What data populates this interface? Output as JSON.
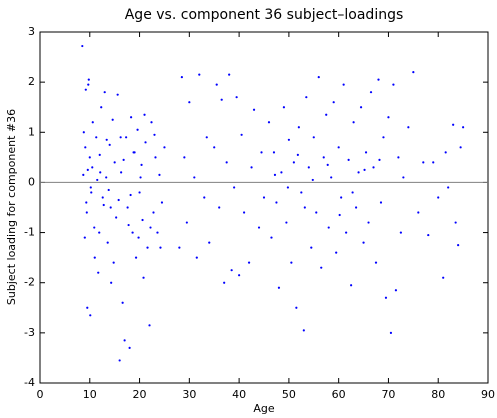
{
  "chart_data": {
    "type": "scatter",
    "title": "Age vs. component 36 subject–loadings",
    "x_label": "Age",
    "y_label": "Subject loading for component #36",
    "color": "#0000ff",
    "reference_line": 0,
    "reference_color": "#808080",
    "xlim": [
      0,
      90
    ],
    "xticks": [
      0,
      10,
      20,
      30,
      40,
      50,
      60,
      70,
      80,
      90
    ],
    "ylim": [
      -4,
      3
    ],
    "yticks": [
      -4,
      -3,
      -2,
      -1,
      0,
      1,
      2,
      3
    ],
    "x": [
      8.5,
      8.7,
      9,
      9.2,
      9.5,
      9.8,
      10,
      10.3,
      10.6,
      11,
      8.8,
      9.1,
      9.4,
      9.7,
      10.1,
      10.5,
      10.9,
      11.3,
      11.7,
      12,
      12.3,
      12.6,
      13,
      13.3,
      13.6,
      14,
      14.3,
      14.6,
      15,
      15.3,
      15.6,
      16,
      16.3,
      16.6,
      17,
      17.3,
      17.6,
      18,
      18.3,
      18.6,
      19,
      19.3,
      19.6,
      20,
      20.4,
      20.8,
      21.2,
      21.6,
      22,
      22.4,
      22.8,
      23.2,
      23.6,
      24,
      24.5,
      25,
      10.2,
      11.5,
      12.8,
      14.8,
      16.8,
      17.8,
      19.8,
      21,
      23,
      9.6,
      13.8,
      15.8,
      18.8,
      20.6,
      28,
      28.5,
      29,
      29.5,
      30,
      31,
      31.5,
      32,
      33,
      33.5,
      34,
      35,
      35.5,
      36,
      36.5,
      37,
      37.5,
      38,
      38.5,
      39,
      39.5,
      40,
      40.5,
      41,
      42,
      42.5,
      43,
      44,
      44.5,
      45,
      46,
      46.5,
      47,
      47.5,
      48,
      48.5,
      49,
      49.5,
      50,
      50.5,
      51,
      51.5,
      52,
      52.5,
      53,
      53.5,
      54,
      54.5,
      55,
      55.5,
      56,
      56.5,
      57,
      57.5,
      58,
      58.5,
      59,
      59.5,
      60,
      60.5,
      61,
      61.5,
      62,
      62.5,
      63,
      63.5,
      64,
      64.5,
      65,
      65.5,
      66,
      66.5,
      67,
      67.5,
      68,
      68.5,
      69,
      69.5,
      70,
      70.5,
      71,
      71.5,
      72,
      72.5,
      73,
      74,
      75,
      76,
      77,
      78,
      79,
      80,
      81,
      81.5,
      82,
      83,
      83.5,
      84,
      84.5,
      85,
      47.2,
      49.8,
      51.8,
      53.2,
      54.8,
      57.8,
      60.2,
      62.8,
      65.2,
      68.2,
      12.1,
      14.2,
      16.2,
      18.2,
      20.2,
      22.2,
      24.2,
      9.3,
      11.9,
      13.4
    ],
    "values": [
      2.72,
      0.15,
      -1.1,
      1.85,
      -2.5,
      2.05,
      0.5,
      -0.2,
      1.2,
      -1.5,
      1.0,
      0.7,
      -0.6,
      1.95,
      -2.65,
      0.3,
      -0.9,
      0.9,
      -1.8,
      0.55,
      1.5,
      -0.3,
      1.8,
      0.1,
      -1.2,
      0.75,
      -2.0,
      1.25,
      0.4,
      -0.7,
      1.75,
      -3.55,
      0.2,
      -2.4,
      -3.15,
      0.9,
      -0.5,
      -3.3,
      1.3,
      -1.0,
      0.6,
      -1.5,
      1.05,
      -0.2,
      0.35,
      -1.9,
      0.8,
      -1.3,
      -2.85,
      1.2,
      -0.6,
      0.5,
      -1.0,
      0.15,
      -0.4,
      0.7,
      -0.1,
      0.05,
      -0.45,
      -1.6,
      0.45,
      -0.85,
      -1.1,
      1.35,
      0.95,
      0.25,
      -0.15,
      -0.35,
      0.6,
      -0.75,
      -1.3,
      2.1,
      0.5,
      -0.8,
      1.6,
      0.1,
      -1.5,
      2.15,
      -0.3,
      0.9,
      -1.2,
      0.7,
      1.95,
      -0.5,
      1.65,
      -2.0,
      0.4,
      2.15,
      -1.75,
      -0.1,
      1.7,
      -1.85,
      0.95,
      -0.6,
      -1.6,
      0.3,
      1.45,
      -0.9,
      0.6,
      -0.3,
      1.2,
      -1.1,
      0.6,
      -0.4,
      -2.1,
      0.2,
      1.5,
      -0.8,
      0.85,
      -1.6,
      0.4,
      -2.5,
      1.1,
      -0.2,
      -2.95,
      1.7,
      0.3,
      -1.3,
      0.9,
      -0.6,
      2.1,
      -1.7,
      0.5,
      1.35,
      -0.9,
      0.1,
      1.6,
      -1.4,
      0.7,
      -0.3,
      1.95,
      -1.0,
      0.45,
      -2.05,
      1.2,
      -0.5,
      0.2,
      1.5,
      -1.2,
      0.6,
      -0.8,
      1.8,
      0.3,
      -1.6,
      2.05,
      -0.4,
      0.9,
      -2.3,
      1.3,
      -3.0,
      1.95,
      -2.15,
      0.5,
      -1.0,
      0.1,
      1.1,
      2.2,
      -0.6,
      0.4,
      -1.05,
      0.4,
      -0.3,
      -1.9,
      0.6,
      -0.1,
      1.15,
      -0.8,
      -1.25,
      0.7,
      1.1,
      0.15,
      -0.1,
      0.55,
      -0.5,
      0.05,
      0.35,
      -0.65,
      -0.2,
      0.25,
      0.45,
      0.2,
      -0.5,
      0.9,
      -0.25,
      0.1,
      -0.9,
      -1.3,
      -0.4,
      -1.0,
      0.85
    ]
  }
}
